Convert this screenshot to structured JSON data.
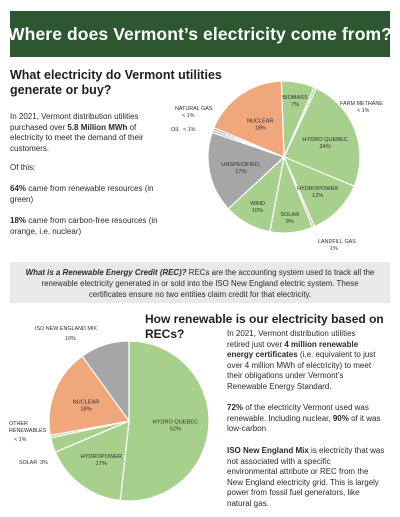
{
  "banner": {
    "title": "Where does Vermont’s electricity come from?"
  },
  "section1": {
    "heading_line1": "What electricity do Vermont utilities",
    "heading_line2": "generate or buy?",
    "p1_a": "In 2021, Vermont distribution utilities",
    "p1_b_pre": "purchased over ",
    "p1_b_bold": "5.8 Million MWh",
    "p1_b_post": " of",
    "p1_c": "electricity to meet the demand of their",
    "p1_d": "customers.",
    "p2": "Of this:",
    "p3_bold": "64%",
    "p3_a": " came from renewable resources (in",
    "p3_b": "green)",
    "p4_bold": "18%",
    "p4_a": " came from carbon-free resources (in",
    "p4_b": "orange, i.e. nuclear)"
  },
  "callout": {
    "q": "What is a Renewable Energy Credit (REC)?",
    "line1_post": "  RECs are the accounting system used to track all the",
    "line2": "renewable electricity generated in or sold into the ISO New England electric system. These",
    "line3": "certificates ensure no two entities claim credit for that electricity."
  },
  "section2": {
    "heading": "How renewable is our electricity based on RECs?",
    "p1_a": "In 2021, Vermont distribution utilities",
    "p1_b": "retired just over ",
    "p1_b_bold": "4 million renewable",
    "p1_c_bold": "energy certificates",
    "p1_c": " (i.e. equivalent to just",
    "p1_d": "over 4 million MWh of electricity) to meet",
    "p1_e": "their obligations under Vermont’s",
    "p1_f": "Renewable Energy Standard.",
    "p2_bold": "72%",
    "p2_a": " of the electricity Vermont used was",
    "p2_b_pre": "renewable. Including nuclear, ",
    "p2_b_bold": "90%",
    "p2_b_post": " of it was",
    "p2_c": "low-carbon",
    "p3_bold": "ISO New England Mix",
    "p3_a": " is electricity that was",
    "p3_b": "not associated with a specific",
    "p3_c": "environmental attribute or REC from the",
    "p3_d": "New England electricity grid. This is largely",
    "p3_e": "power from fossil fuel generators, like",
    "p3_f": "natural gas."
  },
  "colors": {
    "green": "#a8d08d",
    "orange": "#f0a77c",
    "gray": "#a6a6a6",
    "banner": "#2c5731",
    "callout_bg": "#e9e9e9"
  },
  "chart_data": [
    {
      "type": "pie",
      "title": "",
      "slices": [
        {
          "label": "BIOMASS",
          "value": 7,
          "display": "7%",
          "color": "#a8d08d"
        },
        {
          "label": "FARM METHANE",
          "value": 0.5,
          "display": "< 1%",
          "color": "#a8d08d"
        },
        {
          "label": "HYDRO QUEBEC",
          "value": 24,
          "display": "24%",
          "color": "#a8d08d"
        },
        {
          "label": "HYDROPOWER",
          "value": 12,
          "display": "12%",
          "color": "#a8d08d"
        },
        {
          "label": "LANDFILL GAS",
          "value": 0.5,
          "display": "1%",
          "color": "#a8d08d"
        },
        {
          "label": "SOLAR",
          "value": 9,
          "display": "9%",
          "color": "#a8d08d"
        },
        {
          "label": "WIND",
          "value": 10,
          "display": "10%",
          "color": "#a8d08d"
        },
        {
          "label": "UNSPECIFIED",
          "value": 17,
          "display": "17%",
          "color": "#a6a6a6"
        },
        {
          "label": "OIL",
          "value": 0.5,
          "display": "< 1%",
          "color": "#a6a6a6"
        },
        {
          "label": "NATURAL GAS",
          "value": 0.5,
          "display": "< 1%",
          "color": "#a6a6a6"
        },
        {
          "label": "NUCLEAR",
          "value": 18,
          "display": "18%",
          "color": "#f0a77c"
        }
      ]
    },
    {
      "type": "pie",
      "title": "",
      "slices": [
        {
          "label": "HYDRO QUEBEC",
          "value": 52,
          "display": "52%",
          "color": "#a8d08d"
        },
        {
          "label": "HYDROPOWER",
          "value": 17,
          "display": "17%",
          "color": "#a8d08d"
        },
        {
          "label": "SOLAR",
          "value": 3,
          "display": "3%",
          "color": "#a8d08d"
        },
        {
          "label": "OTHER RENEWABLES",
          "value": 0.5,
          "display": "< 1%",
          "color": "#a8d08d"
        },
        {
          "label": "NUCLEAR",
          "value": 18,
          "display": "18%",
          "color": "#f0a77c"
        },
        {
          "label": "ISO NEW ENGLAND MIX",
          "value": 10,
          "display": "10%",
          "color": "#a6a6a6"
        }
      ]
    }
  ]
}
